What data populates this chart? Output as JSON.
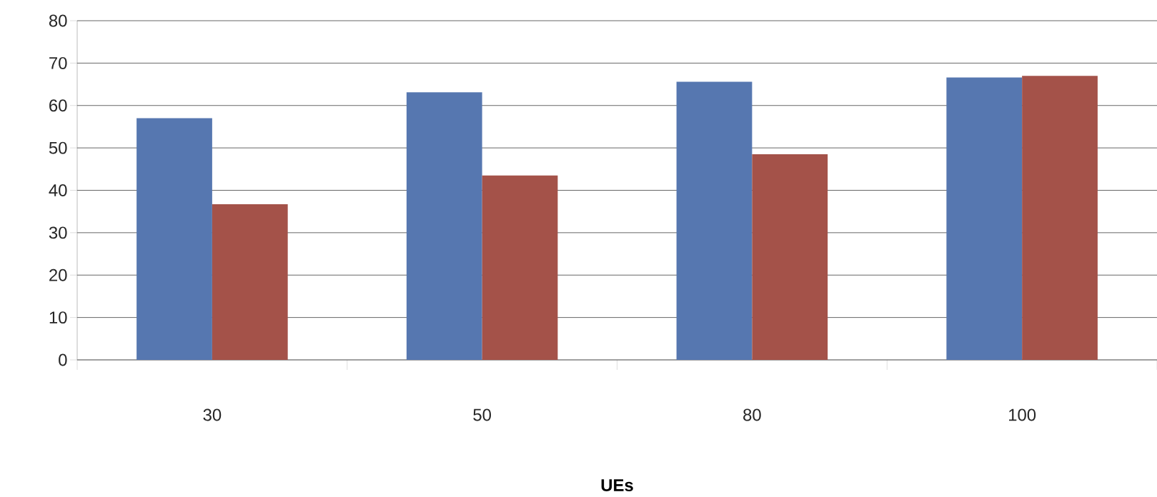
{
  "chart_data": {
    "type": "bar",
    "xlabel": "UEs",
    "categories": [
      "30",
      "50",
      "80",
      "100"
    ],
    "series": [
      {
        "color": "#5677b0",
        "values": [
          57.0,
          63.1,
          65.6,
          66.6
        ]
      },
      {
        "color": "#a45249",
        "values": [
          36.7,
          43.5,
          48.5,
          67.0
        ]
      }
    ],
    "ylim": [
      0,
      80
    ],
    "yticks": [
      0,
      10,
      20,
      30,
      40,
      50,
      60,
      70,
      80
    ],
    "grid": "y"
  }
}
